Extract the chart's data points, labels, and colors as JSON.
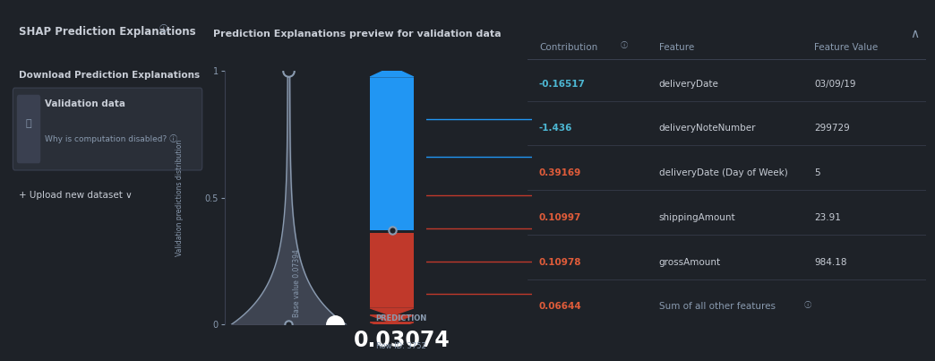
{
  "bg_color": "#1e2228",
  "panel_bg": "#2a2f38",
  "title": "SHAP Prediction Explanations",
  "subtitle": "Prediction Explanations preview for validation data",
  "download_label": "Download Prediction Explanations",
  "validation_label": "Validation data",
  "validation_sub": "Why is computation disabled?",
  "upload_label": "+ Upload new dataset",
  "prediction_value": "0.03074",
  "prediction_label": "PREDICTION",
  "row_id": "Row ID: 3752",
  "base_value_label": "Base value 0.07394",
  "y_axis_label": "Validation predictions distribution",
  "table_headers": [
    "Contribution",
    "Feature",
    "Feature Value"
  ],
  "table_rows": [
    [
      "-0.16517",
      "deliveryDate",
      "03/09/19"
    ],
    [
      "-1.436",
      "deliveryNoteNumber",
      "299729"
    ],
    [
      "0.39169",
      "deliveryDate (Day of Week)",
      "5"
    ],
    [
      "0.10997",
      "shippingAmount",
      "23.91"
    ],
    [
      "0.10978",
      "grossAmount",
      "984.18"
    ],
    [
      "0.06644",
      "Sum of all other features",
      ""
    ]
  ],
  "text_color": "#c8cdd6",
  "header_color": "#8a9bb0",
  "neg_contribution_color": "#4db8d4",
  "pos_contribution_color": "#e05c3a",
  "blue_bar_color": "#2196f3",
  "red_bar_color": "#c0392b",
  "funnel_fill": "#4a5060",
  "funnel_edge": "#8a9bb0",
  "divider_color": "#3a4050",
  "white": "#ffffff"
}
